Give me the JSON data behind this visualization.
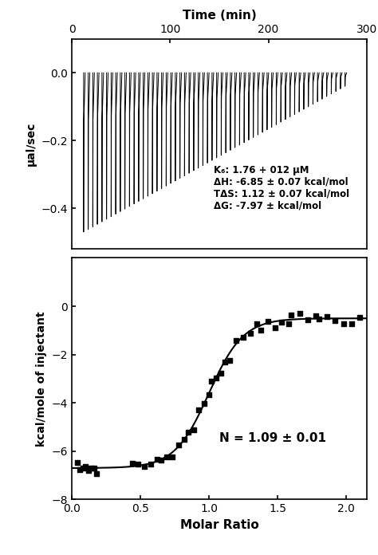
{
  "top_panel": {
    "xlabel": "Time (min)",
    "ylabel": "μal/sec",
    "xlim": [
      0,
      300
    ],
    "ylim": [
      -0.52,
      0.1
    ],
    "yticks": [
      0.0,
      -0.2,
      -0.4
    ],
    "xticks": [
      0,
      100,
      200,
      300
    ],
    "n_peaks": 58,
    "peak_start_time": 12,
    "peak_end_time": 278,
    "peak_depth_max": -0.47,
    "peak_depth_min": -0.04,
    "annotation_line1": "K",
    "annotation_line1b": "d",
    "annotation": "K₆: 1.76 + 012 μM\nΔH: -6.85 ± 0.07 kcal/mol\nTΔS: 1.12 ± 0.07 kcal/mol\nΔG: -7.97 ± kcal/mol"
  },
  "bottom_panel": {
    "xlabel": "Molar Ratio",
    "ylabel": "kcal/mole of injectant",
    "xlim": [
      0.0,
      2.15
    ],
    "ylim": [
      -8,
      2
    ],
    "yticks": [
      0,
      -2,
      -4,
      -6,
      -8
    ],
    "xticks": [
      0.0,
      0.5,
      1.0,
      1.5,
      2.0
    ],
    "annotation": "N = 1.09 ± 0.01",
    "upper_plateau": -0.5,
    "lower_plateau": -6.7,
    "midpoint": 1.0,
    "slope_factor": 8.0
  },
  "figure_bg": "#ffffff"
}
